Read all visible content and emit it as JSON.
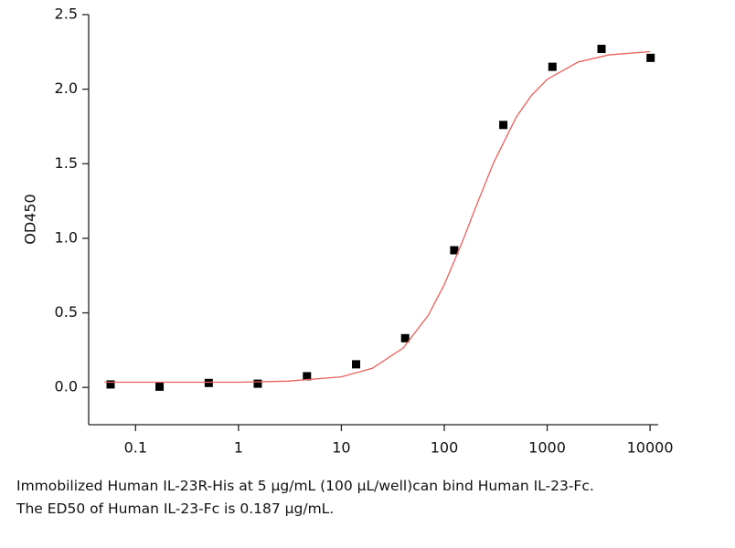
{
  "chart_data": {
    "type": "scatter",
    "y_label": "OD450",
    "log_x": true,
    "xlim": [
      0.035,
      12000
    ],
    "ylim": [
      -0.25,
      2.5
    ],
    "xticks": [
      0.1,
      1,
      10,
      100,
      1000,
      10000
    ],
    "yticks": [
      {
        "value": 0,
        "label": "0.0"
      },
      {
        "value": 0.5,
        "label": "0.5"
      },
      {
        "value": 1,
        "label": "1.0"
      },
      {
        "value": 1.5,
        "label": "1.5"
      },
      {
        "value": 2,
        "label": "2.0"
      },
      {
        "value": 2.5,
        "label": "2.5"
      }
    ],
    "series": [
      {
        "style": "markers",
        "color": "#000000",
        "x": [
          0.0572,
          0.171,
          0.514,
          1.54,
          4.63,
          13.9,
          41.7,
          125,
          375,
          1125,
          3375,
          10125
        ],
        "values": [
          0.02,
          0.005,
          0.03,
          0.025,
          0.075,
          0.155,
          0.33,
          0.92,
          1.76,
          2.15,
          2.27,
          2.21
        ]
      },
      {
        "style": "line",
        "color": "#e8605a",
        "x": [
          0.05,
          0.1,
          0.3,
          1,
          3,
          10,
          20,
          40,
          70,
          100,
          150,
          200,
          300,
          500,
          700,
          1000,
          2000,
          4000,
          10000
        ],
        "values": [
          0.035,
          0.035,
          0.035,
          0.035,
          0.042,
          0.071,
          0.128,
          0.265,
          0.484,
          0.689,
          0.977,
          1.2,
          1.503,
          1.812,
          1.956,
          2.066,
          2.182,
          2.23,
          2.252
        ]
      }
    ],
    "annotations": [
      "Immobilized Human IL-23R-His at 5 μg/mL (100 μL/well)can bind Human IL-23-Fc.",
      "The ED50 of Human IL-23-Fc is 0.187 μg/mL."
    ]
  }
}
